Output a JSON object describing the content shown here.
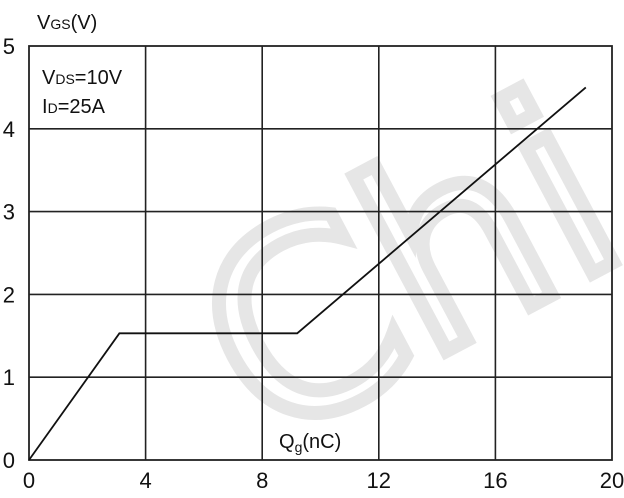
{
  "chart_data": {
    "type": "line",
    "y_axis_title": {
      "main": "V",
      "sub": "GS",
      "unit": "(V)"
    },
    "x_axis_title": {
      "main": "Q",
      "sub": "g",
      "unit": "(nC)"
    },
    "annotations": [
      {
        "main": "V",
        "sub": "DS",
        "value": "=10V"
      },
      {
        "main": "I",
        "sub": "D",
        "value": "=25A"
      }
    ],
    "xlim": [
      0,
      20
    ],
    "ylim": [
      0,
      5
    ],
    "x_ticks": [
      0,
      4,
      8,
      12,
      16,
      20
    ],
    "y_ticks": [
      0,
      1,
      2,
      3,
      4,
      5
    ],
    "grid": true,
    "watermark": "Chi",
    "series": [
      {
        "x": [
          0,
          3.1,
          9.2,
          19.1
        ],
        "y": [
          0,
          1.53,
          1.53,
          4.5
        ]
      }
    ]
  }
}
